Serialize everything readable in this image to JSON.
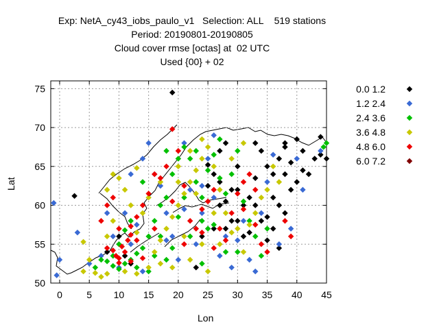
{
  "title_lines": [
    "Exp: NetA_cy43_iobs_paulo_v1   Selection: ALL    519 stations",
    "Period: 20190801-20190805",
    "Cloud cover rmse [octas] at  02 UTC",
    "Used {00} + 02"
  ],
  "chart_data": {
    "type": "scatter",
    "title": "Cloud cover rmse [octas] at  02 UTC",
    "xlabel": "Lon",
    "ylabel": "Lat",
    "xlim": [
      -1.5,
      45
    ],
    "ylim": [
      50,
      76
    ],
    "x_ticks": [
      0,
      5,
      10,
      15,
      20,
      25,
      30,
      35,
      40,
      45
    ],
    "y_ticks": [
      50,
      55,
      60,
      65,
      70,
      75
    ],
    "grid": true,
    "legend_position": "right",
    "series": [
      {
        "name": "0.0 1.2",
        "color": "#000000",
        "points": [
          [
            19,
            74.5
          ],
          [
            2.5,
            61.2
          ],
          [
            25,
            62.5
          ],
          [
            25,
            65.2
          ],
          [
            26,
            64
          ],
          [
            27,
            63
          ],
          [
            28,
            60.5
          ],
          [
            28,
            57
          ],
          [
            29,
            58
          ],
          [
            29,
            62
          ],
          [
            30,
            65
          ],
          [
            30,
            62
          ],
          [
            30,
            58
          ],
          [
            31,
            60
          ],
          [
            31,
            56
          ],
          [
            32,
            61
          ],
          [
            32,
            56.5
          ],
          [
            33,
            68
          ],
          [
            33,
            63.5
          ],
          [
            33,
            60
          ],
          [
            34,
            67
          ],
          [
            34,
            58
          ],
          [
            35,
            65
          ],
          [
            35,
            58.5
          ],
          [
            35,
            55.5
          ],
          [
            36,
            64
          ],
          [
            36,
            61
          ],
          [
            37,
            66
          ],
          [
            37,
            60
          ],
          [
            38,
            68
          ],
          [
            38,
            67.5
          ],
          [
            38,
            64
          ],
          [
            38,
            59
          ],
          [
            39,
            65.5
          ],
          [
            39,
            62
          ],
          [
            40,
            68.5
          ],
          [
            40,
            63
          ],
          [
            41,
            64.5
          ],
          [
            41,
            67
          ],
          [
            42,
            64
          ],
          [
            43,
            66
          ],
          [
            44,
            68.8
          ],
          [
            44,
            66.5
          ],
          [
            45,
            66
          ],
          [
            36,
            57
          ],
          [
            37,
            54.5
          ],
          [
            27,
            60
          ],
          [
            26,
            57
          ],
          [
            24,
            56
          ],
          [
            23,
            52
          ],
          [
            12,
            52.5
          ],
          [
            10,
            56
          ],
          [
            11,
            53.5
          ],
          [
            8,
            54
          ],
          [
            28,
            68
          ],
          [
            27,
            67
          ]
        ]
      },
      {
        "name": "1.2 2.4",
        "color": "#3a6ad4",
        "points": [
          [
            -1,
            60.3
          ],
          [
            0,
            53
          ],
          [
            -0.5,
            51
          ],
          [
            3,
            56.5
          ],
          [
            5,
            52.5
          ],
          [
            7,
            53.5
          ],
          [
            9,
            56
          ],
          [
            10,
            52
          ],
          [
            12,
            55
          ],
          [
            13,
            57.5
          ],
          [
            14,
            66
          ],
          [
            15,
            68
          ],
          [
            16,
            64
          ],
          [
            17,
            62.5
          ],
          [
            18,
            59
          ],
          [
            19,
            56
          ],
          [
            20,
            53
          ],
          [
            21,
            59.5
          ],
          [
            22,
            62
          ],
          [
            23,
            55
          ],
          [
            24,
            59
          ],
          [
            25,
            66
          ],
          [
            26,
            61
          ],
          [
            27,
            53.5
          ],
          [
            28,
            56
          ],
          [
            29,
            52
          ],
          [
            30,
            55.5
          ],
          [
            31,
            58
          ],
          [
            32,
            53
          ],
          [
            33,
            51.5
          ],
          [
            34,
            59
          ],
          [
            35,
            63
          ],
          [
            36,
            66.5
          ],
          [
            37,
            55
          ],
          [
            39,
            57
          ],
          [
            40,
            66
          ],
          [
            41,
            62
          ],
          [
            44,
            67
          ],
          [
            26,
            69
          ],
          [
            21,
            68
          ],
          [
            12,
            64
          ],
          [
            11,
            59
          ],
          [
            14,
            51.5
          ],
          [
            8,
            59
          ],
          [
            24,
            62.5
          ],
          [
            18,
            55.5
          ]
        ]
      },
      {
        "name": "2.4 3.6",
        "color": "#00c000",
        "points": [
          [
            6,
            52
          ],
          [
            7,
            53
          ],
          [
            8,
            52.8
          ],
          [
            9,
            52.2
          ],
          [
            10,
            51.8
          ],
          [
            11,
            52.5
          ],
          [
            12,
            53
          ],
          [
            13,
            53.8
          ],
          [
            14,
            54.5
          ],
          [
            15,
            56
          ],
          [
            16,
            58
          ],
          [
            17,
            60
          ],
          [
            18,
            61
          ],
          [
            19,
            64
          ],
          [
            20,
            66
          ],
          [
            21,
            67.5
          ],
          [
            22,
            66
          ],
          [
            23,
            63
          ],
          [
            24,
            61
          ],
          [
            25,
            64.5
          ],
          [
            26,
            66.5
          ],
          [
            27,
            63.5
          ],
          [
            28,
            61.5
          ],
          [
            29,
            64
          ],
          [
            30,
            67
          ],
          [
            31,
            60.5
          ],
          [
            32,
            58
          ],
          [
            33,
            56
          ],
          [
            34,
            53.5
          ],
          [
            35,
            57
          ],
          [
            30,
            54
          ],
          [
            28,
            54
          ],
          [
            26,
            57.5
          ],
          [
            24,
            58
          ],
          [
            22,
            56
          ],
          [
            20,
            58.5
          ],
          [
            18,
            53
          ],
          [
            16,
            53.5
          ],
          [
            15,
            51.5
          ],
          [
            13,
            52
          ],
          [
            10,
            55
          ],
          [
            9,
            53.5
          ],
          [
            11,
            56.8
          ],
          [
            12,
            58
          ],
          [
            14,
            63
          ],
          [
            18,
            67
          ],
          [
            23,
            67
          ],
          [
            27,
            68.5
          ],
          [
            25,
            57
          ],
          [
            21,
            61
          ],
          [
            17,
            56
          ],
          [
            19,
            54.5
          ],
          [
            24,
            52.5
          ],
          [
            45,
            68
          ],
          [
            44.5,
            67.5
          ]
        ]
      },
      {
        "name": "3.6 4.8",
        "color": "#c8c800",
        "points": [
          [
            4,
            51.5
          ],
          [
            4,
            55.3
          ],
          [
            5,
            53
          ],
          [
            6,
            51.3
          ],
          [
            7,
            50.8
          ],
          [
            8,
            51.2
          ],
          [
            11,
            51.5
          ],
          [
            13,
            51.2
          ],
          [
            15,
            52
          ],
          [
            16,
            54
          ],
          [
            17,
            55.5
          ],
          [
            18,
            57
          ],
          [
            19,
            58.5
          ],
          [
            20,
            60
          ],
          [
            21,
            61.5
          ],
          [
            22,
            63
          ],
          [
            23,
            64.5
          ],
          [
            24,
            66
          ],
          [
            25,
            67.5
          ],
          [
            24,
            68.5
          ],
          [
            22,
            67
          ],
          [
            20,
            65
          ],
          [
            17,
            63
          ],
          [
            15,
            61
          ],
          [
            14,
            59
          ],
          [
            13,
            56.5
          ],
          [
            12,
            60
          ],
          [
            11,
            62
          ],
          [
            10,
            63.5
          ],
          [
            9,
            64
          ],
          [
            8,
            62
          ],
          [
            8,
            56
          ],
          [
            9,
            58
          ],
          [
            26,
            65
          ],
          [
            27,
            62
          ],
          [
            28,
            59
          ],
          [
            29,
            56.5
          ],
          [
            30,
            57
          ],
          [
            31,
            54
          ],
          [
            32,
            57.5
          ],
          [
            33,
            59
          ],
          [
            34,
            61
          ],
          [
            35,
            62
          ],
          [
            36,
            65
          ],
          [
            37,
            63
          ],
          [
            29,
            66
          ],
          [
            31,
            68
          ],
          [
            26,
            59
          ],
          [
            24,
            55
          ],
          [
            22,
            53
          ],
          [
            21,
            56
          ],
          [
            19,
            52
          ],
          [
            17,
            52.5
          ],
          [
            27,
            55
          ],
          [
            25,
            51.5
          ],
          [
            23,
            61.5
          ],
          [
            20,
            63
          ],
          [
            13,
            64.8
          ]
        ]
      },
      {
        "name": "4.8 6.0",
        "color": "#ee0000",
        "points": [
          [
            8,
            54.5
          ],
          [
            9,
            54.2
          ],
          [
            9.5,
            53.5
          ],
          [
            10,
            53.2
          ],
          [
            10.5,
            54.7
          ],
          [
            11,
            54
          ],
          [
            11.5,
            55.5
          ],
          [
            12,
            56.2
          ],
          [
            13,
            55.5
          ],
          [
            10,
            57
          ],
          [
            12,
            57.3
          ],
          [
            13,
            58.5
          ],
          [
            14,
            60
          ],
          [
            15,
            61.5
          ],
          [
            16,
            64
          ],
          [
            17,
            63.5
          ],
          [
            18,
            65
          ],
          [
            19,
            69.8
          ],
          [
            20,
            67
          ],
          [
            21,
            62.5
          ],
          [
            22,
            58
          ],
          [
            23,
            57
          ],
          [
            24,
            59.5
          ],
          [
            25,
            60.5
          ],
          [
            26,
            62
          ],
          [
            27,
            57
          ],
          [
            28,
            55.5
          ],
          [
            29,
            59
          ],
          [
            30,
            61.5
          ],
          [
            31,
            63
          ],
          [
            32,
            64
          ],
          [
            33,
            57.5
          ],
          [
            34,
            55
          ],
          [
            35,
            54
          ],
          [
            39,
            56
          ],
          [
            38,
            58
          ],
          [
            8,
            60
          ],
          [
            9,
            61
          ],
          [
            7,
            58
          ],
          [
            10,
            52.6
          ],
          [
            12,
            52.8
          ],
          [
            14,
            53.2
          ],
          [
            16,
            57
          ],
          [
            19,
            60.5
          ],
          [
            24,
            56.5
          ],
          [
            26,
            54.5
          ],
          [
            21,
            55
          ],
          [
            31,
            59.5
          ],
          [
            33,
            62
          ]
        ]
      },
      {
        "name": "6.0 7.2",
        "color": "#800000",
        "points": []
      }
    ]
  }
}
